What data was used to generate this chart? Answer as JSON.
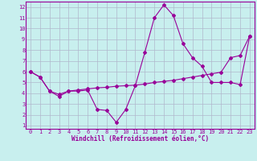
{
  "xlabel": "Windchill (Refroidissement éolien,°C)",
  "background_color": "#c8efee",
  "grid_color": "#b0b8cc",
  "line_color": "#990099",
  "xlim": [
    -0.5,
    23.5
  ],
  "ylim": [
    0.7,
    12.5
  ],
  "xticks": [
    0,
    1,
    2,
    3,
    4,
    5,
    6,
    7,
    8,
    9,
    10,
    11,
    12,
    13,
    14,
    15,
    16,
    17,
    18,
    19,
    20,
    21,
    22,
    23
  ],
  "yticks": [
    1,
    2,
    3,
    4,
    5,
    6,
    7,
    8,
    9,
    10,
    11,
    12
  ],
  "line1_x": [
    0,
    1,
    2,
    3,
    4,
    5,
    6,
    7,
    8,
    9,
    10,
    11,
    12,
    13,
    14,
    15,
    16,
    17,
    18,
    19,
    20,
    21,
    22,
    23
  ],
  "line1_y": [
    6.0,
    5.5,
    4.2,
    3.7,
    4.2,
    4.2,
    4.3,
    2.5,
    2.4,
    1.3,
    2.5,
    4.7,
    7.8,
    11.0,
    12.2,
    11.2,
    8.6,
    7.3,
    6.5,
    5.0,
    5.0,
    5.0,
    4.8,
    9.3
  ],
  "line2_x": [
    0,
    1,
    2,
    3,
    4,
    5,
    6,
    7,
    8,
    9,
    10,
    11,
    12,
    13,
    14,
    15,
    16,
    17,
    18,
    19,
    20,
    21,
    22,
    23
  ],
  "line2_y": [
    6.0,
    5.5,
    4.2,
    3.9,
    4.2,
    4.3,
    4.4,
    4.5,
    4.55,
    4.65,
    4.7,
    4.75,
    4.85,
    5.0,
    5.1,
    5.2,
    5.35,
    5.5,
    5.65,
    5.8,
    5.95,
    7.3,
    7.5,
    9.3
  ],
  "marker": "D",
  "markersize": 2.0,
  "linewidth": 0.8,
  "tick_fontsize": 5.0,
  "xlabel_fontsize": 5.5
}
